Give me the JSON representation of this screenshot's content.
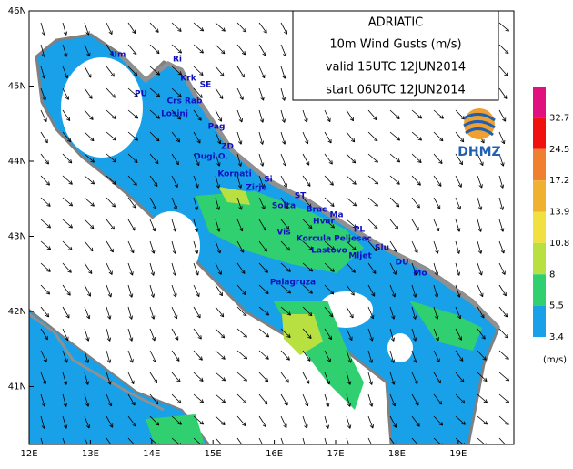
{
  "title_box": {
    "lines": [
      "ADRIATIC",
      "10m Wind Gusts (m/s)",
      "valid 15UTC 12JUN2014",
      "start 06UTC 12JUN2014"
    ]
  },
  "logo": {
    "text": "DHMZ"
  },
  "axes": {
    "lon_ticks": [
      "12E",
      "13E",
      "14E",
      "15E",
      "16E",
      "17E",
      "18E",
      "19E"
    ],
    "lat_ticks": [
      "46N",
      "45N",
      "44N",
      "43N",
      "42N",
      "41N"
    ]
  },
  "colorbar": {
    "unit": "(m/s)",
    "bands": [
      {
        "color": "#e0107f",
        "label": null
      },
      {
        "color": "#f01010",
        "label": "32.7"
      },
      {
        "color": "#f08030",
        "label": "24.5"
      },
      {
        "color": "#f0b030",
        "label": "17.2"
      },
      {
        "color": "#f0e040",
        "label": "13.9"
      },
      {
        "color": "#b8e040",
        "label": "10.8"
      },
      {
        "color": "#30d070",
        "label": "8"
      },
      {
        "color": "#18a0e8",
        "label": "5.5"
      }
    ],
    "bottom_label": "3.4"
  },
  "places": [
    "Um",
    "Ri",
    "Krk",
    "SE",
    "PU",
    "Crs Rab",
    "Losinj",
    "Pag",
    "ZD",
    "Dugi O.",
    "Kornati",
    "Si",
    "Zirje",
    "ST",
    "Solta",
    "Brac",
    "Ma",
    "Hvar",
    "Vis",
    "PL",
    "Korcula",
    "Peljesac",
    "Lastovo",
    "Mljet",
    "Slu",
    "DU",
    "Mo",
    "Palagruza"
  ]
}
